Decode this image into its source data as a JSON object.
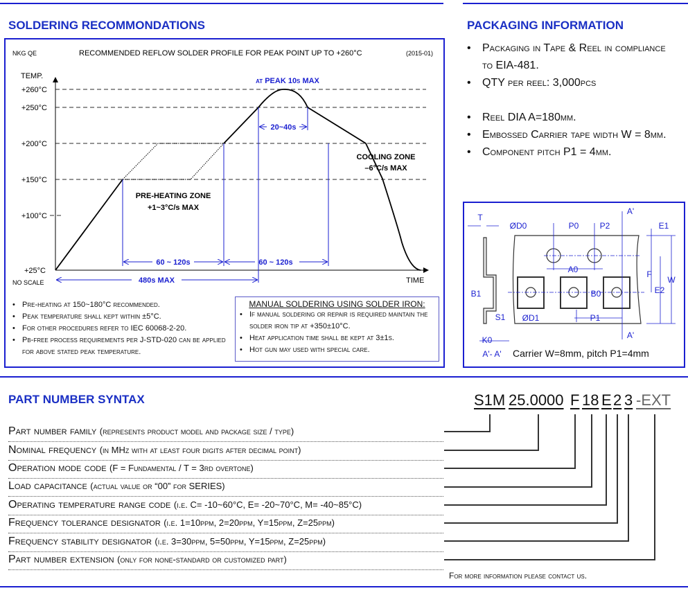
{
  "soldering": {
    "title": "SOLDERING RECOMMONDATIONS",
    "code": "NKG QE",
    "chart_title": "RECOMMENDED REFLOW SOLDER PROFILE FOR PEAK POINT UP TO +260°C",
    "date": "(2015-01)",
    "y_axis_label": "TEMP.",
    "x_axis_label": "TIME",
    "no_scale": "NO SCALE",
    "y_ticks": [
      "+260°C",
      "+250°C",
      "+200°C",
      "+150°C",
      "+100°C",
      "+25°C"
    ],
    "peak_label": "at PEAK 10s MAX",
    "t20_40": "20~40s",
    "preheat_zone": "PRE-HEATING ZONE",
    "preheat_rate": "+1~3°C/s MAX",
    "cooling_zone": "COOLING ZONE",
    "cooling_rate": "–6°C/s MAX",
    "t60_120_a": "60 ~ 120s",
    "t60_120_b": "60 ~ 120s",
    "t480": "480s MAX",
    "notes": [
      "Pre-heating at 150~180°C recommended.",
      "Peak temperature shall kept within ±5°C.",
      "For other procedures refer to IEC 60068-2-20.",
      "Pb-free process requirements per J-STD-020 can be applied for above stated peak temperature."
    ],
    "manual_title": "MANUAL SOLDERING USING SOLDER IRON:",
    "manual_notes": [
      "If manual soldering or repair is required maintain the solder iron tip at +350±10°C.",
      "Heat application time shall be kept at 3±1s.",
      "Hot gun may used with special care."
    ]
  },
  "packaging": {
    "title": "PACKAGING INFORMATION",
    "items": [
      "Packaging in Tape & Reel in compliance to EIA-481.",
      "QTY per reel: 3,000pcs",
      "",
      "Reel DIA A=180mm.",
      "Embossed Carrier tape width W = 8mm.",
      "Component pitch P1 = 4mm."
    ],
    "diagram_labels": {
      "T": "T",
      "D0": "ØD0",
      "P0": "P0",
      "P2": "P2",
      "A1": "A'",
      "A2": "A'",
      "E1": "E1",
      "F": "F",
      "W": "W",
      "E2": "E2",
      "A0": "A0",
      "B0": "B0",
      "B1": "B1",
      "D1": "ØD1",
      "P1": "P1",
      "S1": "S1",
      "K0": "K0",
      "section": "A'- A'"
    },
    "caption": "Carrier W=8mm, pitch P1=4mm"
  },
  "part_number": {
    "title": "PART NUMBER SYNTAX",
    "codes": [
      "S1M",
      "25.0000",
      "F",
      "18",
      "E",
      "2",
      "3",
      "-EXT"
    ],
    "rows": [
      {
        "label": "Part number family",
        "note": "(represents product model and package size / type)"
      },
      {
        "label": "Nominal frequency",
        "note": "(in MHz with at least four digits after decimal point)"
      },
      {
        "label": "Operation mode code",
        "note": "(F = Fundamental / T = 3rd overtone)"
      },
      {
        "label": "Load capacitance",
        "note": "(actual value or “00” for SERIES)"
      },
      {
        "label": "Operating temperature range code",
        "note": "(i.e. C= -10~60°C, E= -20~70°C, M= -40~85°C)"
      },
      {
        "label": "Frequency tolerance designator",
        "note": "(i.e. 1=10ppm, 2=20ppm, Y=15ppm, Z=25ppm)"
      },
      {
        "label": "Frequency stability designator",
        "note": "(i.e. 3=30ppm, 5=50ppm, Y=15ppm, Z=25ppm)"
      },
      {
        "label": "Part number extension",
        "note": "(only for none-standard or customized part)"
      }
    ],
    "footer": "For more information please contact us."
  },
  "colors": {
    "accent": "#1a1fd0",
    "heading": "#1a2fc4",
    "ext": "#666666"
  }
}
